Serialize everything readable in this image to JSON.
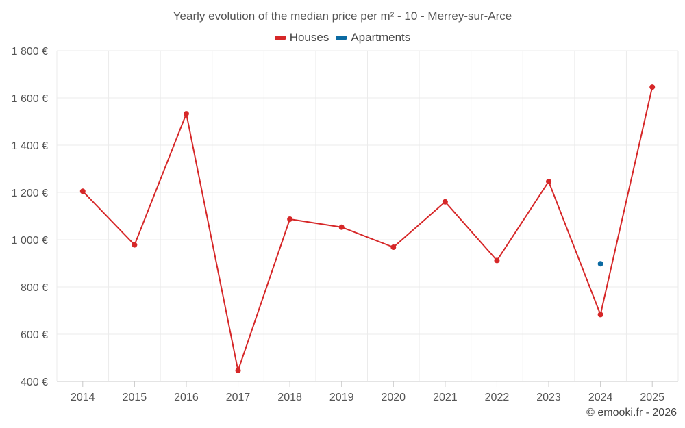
{
  "chart_data": {
    "type": "line",
    "title": "Yearly evolution of the median price per m² - 10 - Merrey-sur-Arce",
    "xlabel": "",
    "ylabel": "",
    "categories": [
      "2014",
      "2015",
      "2016",
      "2017",
      "2018",
      "2019",
      "2020",
      "2021",
      "2022",
      "2023",
      "2024",
      "2025"
    ],
    "series": [
      {
        "name": "Houses",
        "color": "#d62728",
        "values": [
          1205,
          978,
          1533,
          446,
          1087,
          1053,
          968,
          1160,
          912,
          1246,
          683,
          1646
        ]
      },
      {
        "name": "Apartments",
        "color": "#0b6aa2",
        "values": [
          null,
          null,
          null,
          null,
          null,
          null,
          null,
          null,
          null,
          null,
          898,
          null
        ]
      }
    ],
    "ylim": [
      400,
      1800
    ],
    "yticks": [
      400,
      600,
      800,
      1000,
      1200,
      1400,
      1600,
      1800
    ],
    "ytick_labels": [
      "400 €",
      "600 €",
      "800 €",
      "1 000 €",
      "1 200 €",
      "1 400 €",
      "1 600 €",
      "1 800 €"
    ],
    "grid": true,
    "legend_position": "top-center"
  },
  "credit": "© emooki.fr - 2026"
}
